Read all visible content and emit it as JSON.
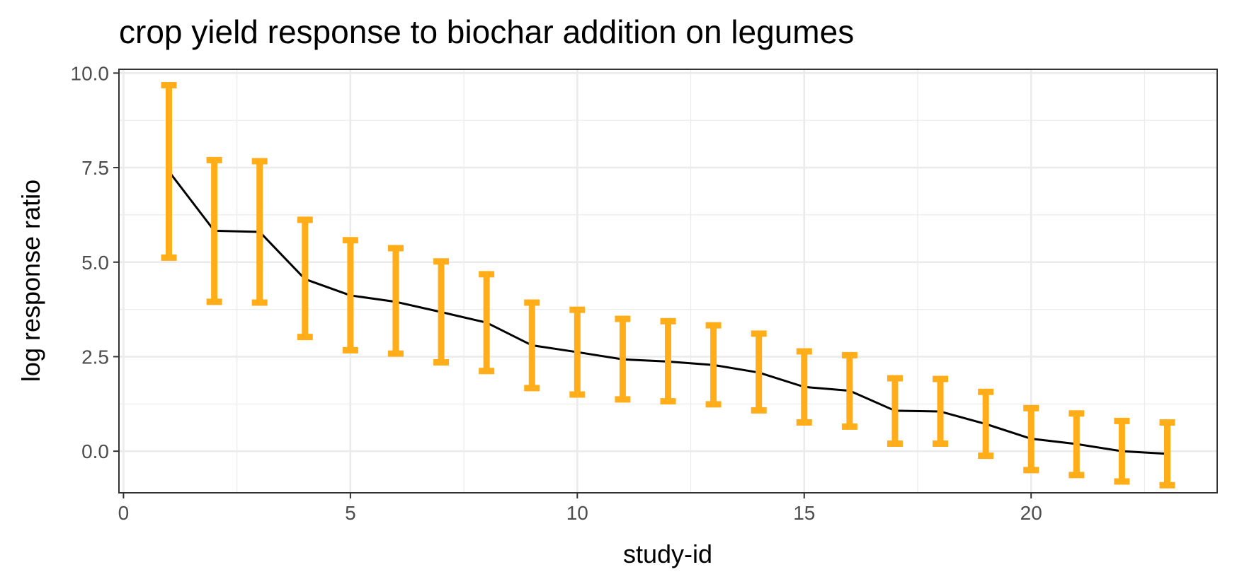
{
  "chart_data": {
    "type": "line",
    "title": "crop yield response to biochar addition on legumes",
    "xlabel": "study-id",
    "ylabel": "log response ratio",
    "xlim": [
      -0.1,
      24.1
    ],
    "ylim": [
      -1.1,
      10.1
    ],
    "x_ticks": [
      0,
      5,
      10,
      15,
      20
    ],
    "x_tick_labels": [
      "0",
      "5",
      "10",
      "15",
      "20"
    ],
    "y_ticks": [
      0,
      2.5,
      5,
      7.5,
      10
    ],
    "y_tick_labels": [
      "0.0",
      "2.5",
      "5.0",
      "7.5",
      "10.0"
    ],
    "grid": true,
    "legend": "none",
    "colors": {
      "line": "#000000",
      "error_bar": "#FFAE19",
      "grid": "#EBEBEB",
      "panel_border": "#333333"
    },
    "series": [
      {
        "x": [
          1,
          2,
          3,
          4,
          5,
          6,
          7,
          8,
          9,
          10,
          11,
          12,
          13,
          14,
          15,
          16,
          17,
          18,
          19,
          20,
          21,
          22,
          23
        ],
        "values": [
          7.4,
          5.83,
          5.8,
          4.55,
          4.12,
          3.95,
          3.68,
          3.4,
          2.8,
          2.62,
          2.43,
          2.37,
          2.28,
          2.08,
          1.7,
          1.6,
          1.07,
          1.05,
          0.72,
          0.33,
          0.19,
          0.0,
          -0.07
        ],
        "lower": [
          5.12,
          3.95,
          3.93,
          3.02,
          2.67,
          2.58,
          2.35,
          2.12,
          1.67,
          1.5,
          1.37,
          1.32,
          1.24,
          1.08,
          0.76,
          0.65,
          0.2,
          0.2,
          -0.12,
          -0.5,
          -0.63,
          -0.8,
          -0.9
        ],
        "upper": [
          9.68,
          7.7,
          7.67,
          6.12,
          5.58,
          5.37,
          5.02,
          4.68,
          3.93,
          3.74,
          3.5,
          3.44,
          3.33,
          3.11,
          2.64,
          2.54,
          1.93,
          1.91,
          1.57,
          1.14,
          1.0,
          0.8,
          0.76
        ]
      }
    ]
  }
}
